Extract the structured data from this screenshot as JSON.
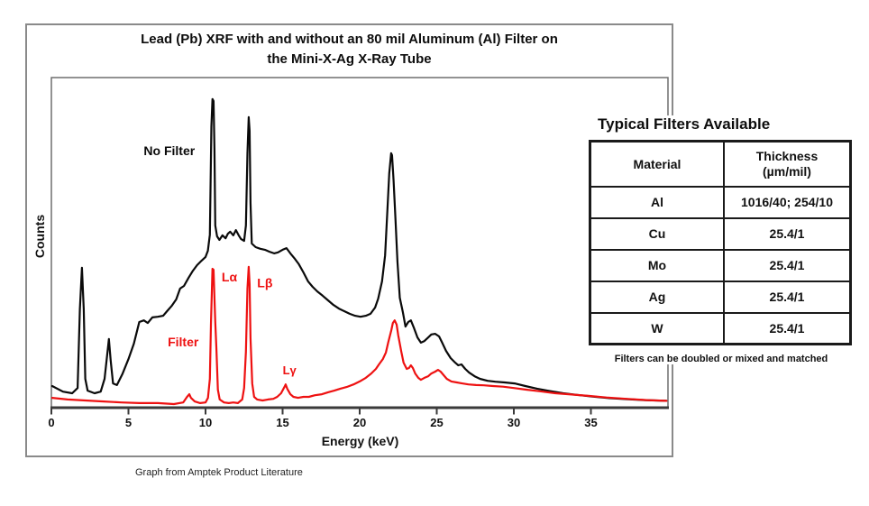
{
  "figure": {
    "title_line1": "Lead (Pb) XRF with and without an 80 mil Aluminum (Al) Filter on",
    "title_line2": "the Mini-X-Ag X-Ray Tube",
    "ylabel": "Counts",
    "xlabel": "Energy (keV)",
    "caption": "Graph from Amptek Product Literature"
  },
  "chart_data": {
    "type": "line",
    "title": "Lead (Pb) XRF with and without an 80 mil Aluminum (Al) Filter on the Mini-X-Ag X-Ray Tube",
    "xlabel": "Energy (keV)",
    "ylabel": "Counts",
    "xlim": [
      0,
      40
    ],
    "x_ticks": [
      0,
      5,
      10,
      15,
      20,
      25,
      30,
      35
    ],
    "grid": false,
    "legend_position": "inline annotations",
    "y_scale_note": "y axis unlabeled; values are relative counts, 0-100 = full plot height",
    "series": [
      {
        "name": "No Filter",
        "color": "#0a0a0a",
        "points": [
          [
            0.05,
            6.6
          ],
          [
            0.75,
            4.9
          ],
          [
            1.35,
            4.4
          ],
          [
            1.7,
            6.0
          ],
          [
            1.85,
            30
          ],
          [
            1.98,
            42.6
          ],
          [
            2.1,
            30
          ],
          [
            2.2,
            8.8
          ],
          [
            2.35,
            5.2
          ],
          [
            2.8,
            4.4
          ],
          [
            3.2,
            4.9
          ],
          [
            3.45,
            8.8
          ],
          [
            3.73,
            20.9
          ],
          [
            3.85,
            14.3
          ],
          [
            4.0,
            7.4
          ],
          [
            4.25,
            6.9
          ],
          [
            4.6,
            10.2
          ],
          [
            5.0,
            14.8
          ],
          [
            5.35,
            19.5
          ],
          [
            5.7,
            26.1
          ],
          [
            6.0,
            26.6
          ],
          [
            6.25,
            25.8
          ],
          [
            6.55,
            27.5
          ],
          [
            6.9,
            27.7
          ],
          [
            7.25,
            28.0
          ],
          [
            7.5,
            29.4
          ],
          [
            7.8,
            31.0
          ],
          [
            8.1,
            33.0
          ],
          [
            8.35,
            36.3
          ],
          [
            8.6,
            37.1
          ],
          [
            8.9,
            39.6
          ],
          [
            9.15,
            41.5
          ],
          [
            9.45,
            43.4
          ],
          [
            9.75,
            44.8
          ],
          [
            10.0,
            45.9
          ],
          [
            10.15,
            47.8
          ],
          [
            10.28,
            52.7
          ],
          [
            10.38,
            85.7
          ],
          [
            10.45,
            94.0
          ],
          [
            10.52,
            93.4
          ],
          [
            10.58,
            78.8
          ],
          [
            10.63,
            55.5
          ],
          [
            10.75,
            52.2
          ],
          [
            10.9,
            51.1
          ],
          [
            11.1,
            52.5
          ],
          [
            11.3,
            51.6
          ],
          [
            11.45,
            53.0
          ],
          [
            11.6,
            53.6
          ],
          [
            11.8,
            52.5
          ],
          [
            11.97,
            54.1
          ],
          [
            12.15,
            52.5
          ],
          [
            12.3,
            51.4
          ],
          [
            12.5,
            50.8
          ],
          [
            12.62,
            55.5
          ],
          [
            12.72,
            77.5
          ],
          [
            12.8,
            88.5
          ],
          [
            12.86,
            84.3
          ],
          [
            12.92,
            62.4
          ],
          [
            13.0,
            50.0
          ],
          [
            13.25,
            48.9
          ],
          [
            13.55,
            48.4
          ],
          [
            13.85,
            48.1
          ],
          [
            14.15,
            47.5
          ],
          [
            14.45,
            47.0
          ],
          [
            14.7,
            47.3
          ],
          [
            15.0,
            48.1
          ],
          [
            15.25,
            48.6
          ],
          [
            15.5,
            47.0
          ],
          [
            15.8,
            45.3
          ],
          [
            16.05,
            43.7
          ],
          [
            16.35,
            41.2
          ],
          [
            16.65,
            38.5
          ],
          [
            16.95,
            36.8
          ],
          [
            17.25,
            35.4
          ],
          [
            17.6,
            34.1
          ],
          [
            17.95,
            32.7
          ],
          [
            18.3,
            31.3
          ],
          [
            18.65,
            30.2
          ],
          [
            19.0,
            29.4
          ],
          [
            19.35,
            28.6
          ],
          [
            19.7,
            28.0
          ],
          [
            20.05,
            27.7
          ],
          [
            20.4,
            28.0
          ],
          [
            20.7,
            28.6
          ],
          [
            21.0,
            30.5
          ],
          [
            21.2,
            33.2
          ],
          [
            21.45,
            38.5
          ],
          [
            21.65,
            46.4
          ],
          [
            21.8,
            60.4
          ],
          [
            21.92,
            71.4
          ],
          [
            22.04,
            77.5
          ],
          [
            22.1,
            76.9
          ],
          [
            22.2,
            69.2
          ],
          [
            22.33,
            56.9
          ],
          [
            22.45,
            44.5
          ],
          [
            22.6,
            33.5
          ],
          [
            22.8,
            29.1
          ],
          [
            22.97,
            24.7
          ],
          [
            23.15,
            26.1
          ],
          [
            23.32,
            26.6
          ],
          [
            23.5,
            24.5
          ],
          [
            23.75,
            21.4
          ],
          [
            23.97,
            19.8
          ],
          [
            24.2,
            20.3
          ],
          [
            24.45,
            21.4
          ],
          [
            24.65,
            22.3
          ],
          [
            24.9,
            22.5
          ],
          [
            25.15,
            21.7
          ],
          [
            25.35,
            19.8
          ],
          [
            25.6,
            17.3
          ],
          [
            25.9,
            15.1
          ],
          [
            26.2,
            13.7
          ],
          [
            26.4,
            12.9
          ],
          [
            26.6,
            13.2
          ],
          [
            26.85,
            11.8
          ],
          [
            27.1,
            10.7
          ],
          [
            27.45,
            9.6
          ],
          [
            27.8,
            8.8
          ],
          [
            28.3,
            8.2
          ],
          [
            28.8,
            7.9
          ],
          [
            29.4,
            7.7
          ],
          [
            30.05,
            7.4
          ],
          [
            30.75,
            6.6
          ],
          [
            31.5,
            5.8
          ],
          [
            32.3,
            5.1
          ],
          [
            33.2,
            4.4
          ],
          [
            34.1,
            3.9
          ],
          [
            35.1,
            3.4
          ],
          [
            36.2,
            2.9
          ],
          [
            37.3,
            2.6
          ],
          [
            38.5,
            2.3
          ],
          [
            39.9,
            2.1
          ]
        ]
      },
      {
        "name": "Filter",
        "color": "#ee1111",
        "points": [
          [
            0.05,
            3.0
          ],
          [
            1.05,
            2.5
          ],
          [
            2.2,
            2.2
          ],
          [
            3.4,
            1.9
          ],
          [
            4.55,
            1.6
          ],
          [
            5.7,
            1.4
          ],
          [
            6.9,
            1.4
          ],
          [
            7.95,
            1.1
          ],
          [
            8.55,
            1.6
          ],
          [
            8.8,
            3.3
          ],
          [
            8.95,
            4.1
          ],
          [
            9.05,
            3.0
          ],
          [
            9.3,
            1.9
          ],
          [
            9.65,
            1.4
          ],
          [
            10.0,
            1.6
          ],
          [
            10.16,
            3.0
          ],
          [
            10.28,
            8.8
          ],
          [
            10.35,
            25.3
          ],
          [
            10.45,
            42.3
          ],
          [
            10.52,
            42.0
          ],
          [
            10.58,
            33.5
          ],
          [
            10.63,
            26.1
          ],
          [
            10.7,
            18.4
          ],
          [
            10.8,
            5.5
          ],
          [
            10.92,
            2.5
          ],
          [
            11.2,
            1.6
          ],
          [
            11.5,
            1.4
          ],
          [
            11.8,
            1.6
          ],
          [
            12.1,
            1.4
          ],
          [
            12.38,
            2.5
          ],
          [
            12.5,
            6.0
          ],
          [
            12.62,
            17.0
          ],
          [
            12.72,
            36.3
          ],
          [
            12.8,
            42.9
          ],
          [
            12.86,
            37.6
          ],
          [
            12.92,
            21.2
          ],
          [
            13.03,
            7.4
          ],
          [
            13.15,
            3.3
          ],
          [
            13.35,
            2.5
          ],
          [
            13.7,
            2.2
          ],
          [
            14.05,
            2.5
          ],
          [
            14.4,
            2.7
          ],
          [
            14.65,
            3.3
          ],
          [
            14.9,
            4.4
          ],
          [
            15.08,
            6.0
          ],
          [
            15.2,
            7.1
          ],
          [
            15.3,
            5.8
          ],
          [
            15.5,
            4.1
          ],
          [
            15.7,
            3.3
          ],
          [
            16.0,
            3.0
          ],
          [
            16.35,
            3.3
          ],
          [
            16.7,
            3.3
          ],
          [
            17.1,
            3.8
          ],
          [
            17.55,
            4.1
          ],
          [
            17.95,
            4.7
          ],
          [
            18.35,
            5.2
          ],
          [
            18.75,
            5.8
          ],
          [
            19.15,
            6.3
          ],
          [
            19.6,
            7.1
          ],
          [
            20.0,
            8.0
          ],
          [
            20.4,
            9.1
          ],
          [
            20.75,
            10.4
          ],
          [
            21.05,
            11.8
          ],
          [
            21.25,
            13.2
          ],
          [
            21.5,
            14.8
          ],
          [
            21.7,
            16.8
          ],
          [
            21.85,
            19.8
          ],
          [
            22.05,
            23.6
          ],
          [
            22.15,
            25.8
          ],
          [
            22.27,
            26.6
          ],
          [
            22.4,
            25.3
          ],
          [
            22.5,
            22.0
          ],
          [
            22.7,
            17.0
          ],
          [
            22.85,
            13.7
          ],
          [
            23.05,
            11.8
          ],
          [
            23.2,
            12.1
          ],
          [
            23.32,
            12.9
          ],
          [
            23.45,
            12.1
          ],
          [
            23.6,
            10.4
          ],
          [
            23.8,
            9.1
          ],
          [
            23.97,
            8.5
          ],
          [
            24.2,
            9.1
          ],
          [
            24.45,
            9.6
          ],
          [
            24.65,
            10.4
          ],
          [
            24.9,
            11.0
          ],
          [
            25.08,
            11.5
          ],
          [
            25.25,
            11.0
          ],
          [
            25.45,
            9.9
          ],
          [
            25.65,
            8.8
          ],
          [
            25.95,
            8.0
          ],
          [
            26.3,
            7.7
          ],
          [
            26.65,
            7.4
          ],
          [
            27.05,
            7.1
          ],
          [
            27.55,
            6.9
          ],
          [
            28.05,
            6.8
          ],
          [
            28.65,
            6.6
          ],
          [
            29.3,
            6.4
          ],
          [
            30.0,
            6.0
          ],
          [
            30.8,
            5.5
          ],
          [
            31.7,
            5.0
          ],
          [
            32.7,
            4.4
          ],
          [
            33.75,
            4.0
          ],
          [
            34.85,
            3.6
          ],
          [
            36.0,
            3.1
          ],
          [
            37.3,
            2.7
          ],
          [
            38.65,
            2.3
          ],
          [
            39.9,
            2.1
          ]
        ]
      }
    ],
    "annotations": [
      {
        "text": "No Filter",
        "x": 7.65,
        "y": 78.3,
        "color": "#0a0a0a",
        "size": 14
      },
      {
        "text": "Filter",
        "x": 8.55,
        "y": 20.0,
        "color": "#ee1111",
        "size": 14
      },
      {
        "text": "Lα",
        "x": 11.55,
        "y": 39.8,
        "color": "#ee1111",
        "size": 14
      },
      {
        "text": "Lβ",
        "x": 13.85,
        "y": 38.0,
        "color": "#ee1111",
        "size": 14
      },
      {
        "text": "Lγ",
        "x": 15.45,
        "y": 11.5,
        "color": "#ee1111",
        "size": 13
      }
    ]
  },
  "table": {
    "title": "Typical Filters Available",
    "headers": {
      "material": "Material",
      "thickness": "Thickness\n(µm/mil)"
    },
    "rows": [
      {
        "material": "Al",
        "thickness": "1016/40; 254/10"
      },
      {
        "material": "Cu",
        "thickness": "25.4/1"
      },
      {
        "material": "Mo",
        "thickness": "25.4/1"
      },
      {
        "material": "Ag",
        "thickness": "25.4/1"
      },
      {
        "material": "W",
        "thickness": "25.4/1"
      }
    ],
    "footnote": "Filters can be doubled or mixed and matched"
  },
  "colors": {
    "no_filter": "#0a0a0a",
    "filter": "#ee1111",
    "frame": "#8a8a8a",
    "axis": "#3a3a3a"
  }
}
